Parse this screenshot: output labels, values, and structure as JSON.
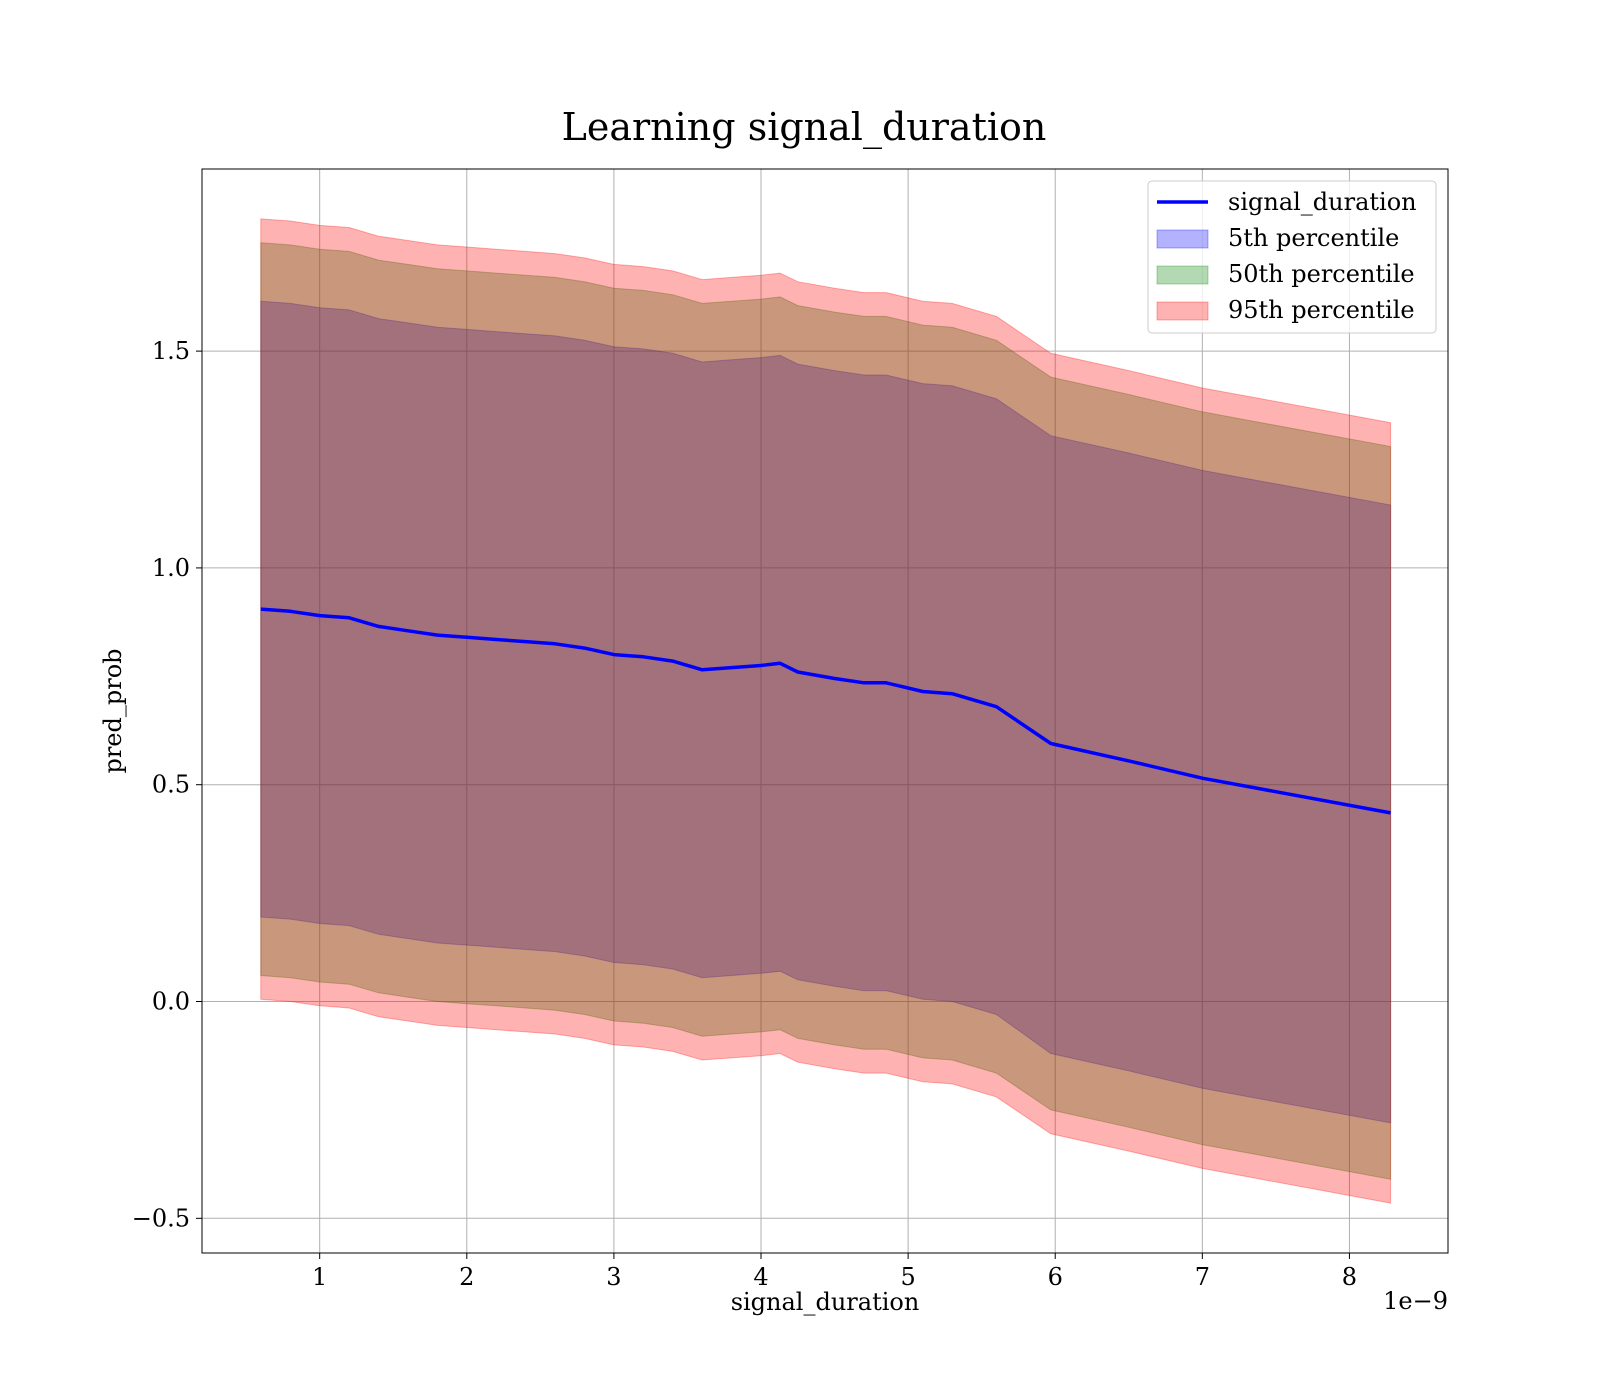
{
  "chart_data": {
    "type": "area",
    "title": "Learning signal_duration",
    "xlabel": "signal_duration",
    "ylabel": "pred_prob",
    "x_offset_text": "1e−9",
    "xlim": [
      0.2,
      8.67
    ],
    "ylim": [
      -0.58,
      1.92
    ],
    "grid": true,
    "legend_position": "top-right",
    "x_ticks": [
      1,
      2,
      3,
      4,
      5,
      6,
      7,
      8
    ],
    "x_tick_labels": [
      "1",
      "2",
      "3",
      "4",
      "5",
      "6",
      "7",
      "8"
    ],
    "y_ticks": [
      -0.5,
      0.0,
      0.5,
      1.0,
      1.5
    ],
    "y_tick_labels": [
      "−0.5",
      "0.0",
      "0.5",
      "1.0",
      "1.5"
    ],
    "x": [
      0.6,
      0.8,
      1.0,
      1.2,
      1.4,
      1.6,
      1.8,
      2.0,
      2.2,
      2.4,
      2.6,
      2.8,
      3.0,
      3.2,
      3.4,
      3.6,
      3.8,
      4.0,
      4.13,
      4.25,
      4.5,
      4.7,
      4.85,
      5.1,
      5.3,
      5.6,
      5.97,
      6.5,
      7.0,
      7.4,
      8.28
    ],
    "series": [
      {
        "name": "signal_duration",
        "kind": "line",
        "color": "#0000ff",
        "values": [
          0.905,
          0.9,
          0.89,
          0.885,
          0.865,
          0.855,
          0.845,
          0.84,
          0.835,
          0.83,
          0.825,
          0.815,
          0.8,
          0.795,
          0.785,
          0.765,
          0.77,
          0.775,
          0.78,
          0.76,
          0.745,
          0.735,
          0.735,
          0.715,
          0.71,
          0.68,
          0.595,
          0.555,
          0.515,
          0.49,
          0.435
        ]
      },
      {
        "name": "5th percentile",
        "kind": "band",
        "color": "#0000ff",
        "lower": [
          0.195,
          0.19,
          0.18,
          0.175,
          0.155,
          0.145,
          0.135,
          0.13,
          0.125,
          0.12,
          0.115,
          0.105,
          0.09,
          0.085,
          0.075,
          0.055,
          0.06,
          0.065,
          0.07,
          0.05,
          0.035,
          0.025,
          0.025,
          0.005,
          0.0,
          -0.03,
          -0.12,
          -0.16,
          -0.2,
          -0.225,
          -0.28
        ],
        "upper": [
          1.615,
          1.61,
          1.6,
          1.595,
          1.575,
          1.565,
          1.555,
          1.55,
          1.545,
          1.54,
          1.535,
          1.525,
          1.51,
          1.505,
          1.495,
          1.475,
          1.48,
          1.485,
          1.49,
          1.47,
          1.455,
          1.445,
          1.445,
          1.425,
          1.42,
          1.39,
          1.305,
          1.265,
          1.225,
          1.2,
          1.145
        ]
      },
      {
        "name": "50th percentile",
        "kind": "band",
        "color": "#008000",
        "lower": [
          0.06,
          0.055,
          0.045,
          0.04,
          0.02,
          0.01,
          0.0,
          -0.005,
          -0.01,
          -0.015,
          -0.02,
          -0.03,
          -0.045,
          -0.05,
          -0.06,
          -0.08,
          -0.075,
          -0.07,
          -0.065,
          -0.085,
          -0.1,
          -0.11,
          -0.11,
          -0.13,
          -0.135,
          -0.165,
          -0.25,
          -0.29,
          -0.33,
          -0.355,
          -0.41
        ],
        "upper": [
          1.75,
          1.745,
          1.735,
          1.73,
          1.71,
          1.7,
          1.69,
          1.685,
          1.68,
          1.675,
          1.67,
          1.66,
          1.645,
          1.64,
          1.63,
          1.61,
          1.615,
          1.62,
          1.625,
          1.605,
          1.59,
          1.58,
          1.58,
          1.56,
          1.555,
          1.525,
          1.44,
          1.4,
          1.36,
          1.335,
          1.28
        ]
      },
      {
        "name": "95th percentile",
        "kind": "band",
        "color": "#ff0000",
        "lower": [
          0.005,
          0.0,
          -0.01,
          -0.015,
          -0.035,
          -0.045,
          -0.055,
          -0.06,
          -0.065,
          -0.07,
          -0.075,
          -0.085,
          -0.1,
          -0.105,
          -0.115,
          -0.135,
          -0.13,
          -0.125,
          -0.12,
          -0.14,
          -0.155,
          -0.165,
          -0.165,
          -0.185,
          -0.19,
          -0.22,
          -0.305,
          -0.345,
          -0.385,
          -0.41,
          -0.465
        ],
        "upper": [
          1.805,
          1.8,
          1.79,
          1.785,
          1.765,
          1.755,
          1.745,
          1.74,
          1.735,
          1.73,
          1.725,
          1.715,
          1.7,
          1.695,
          1.685,
          1.665,
          1.67,
          1.675,
          1.68,
          1.66,
          1.645,
          1.635,
          1.635,
          1.615,
          1.61,
          1.58,
          1.495,
          1.455,
          1.415,
          1.39,
          1.335
        ]
      }
    ]
  }
}
